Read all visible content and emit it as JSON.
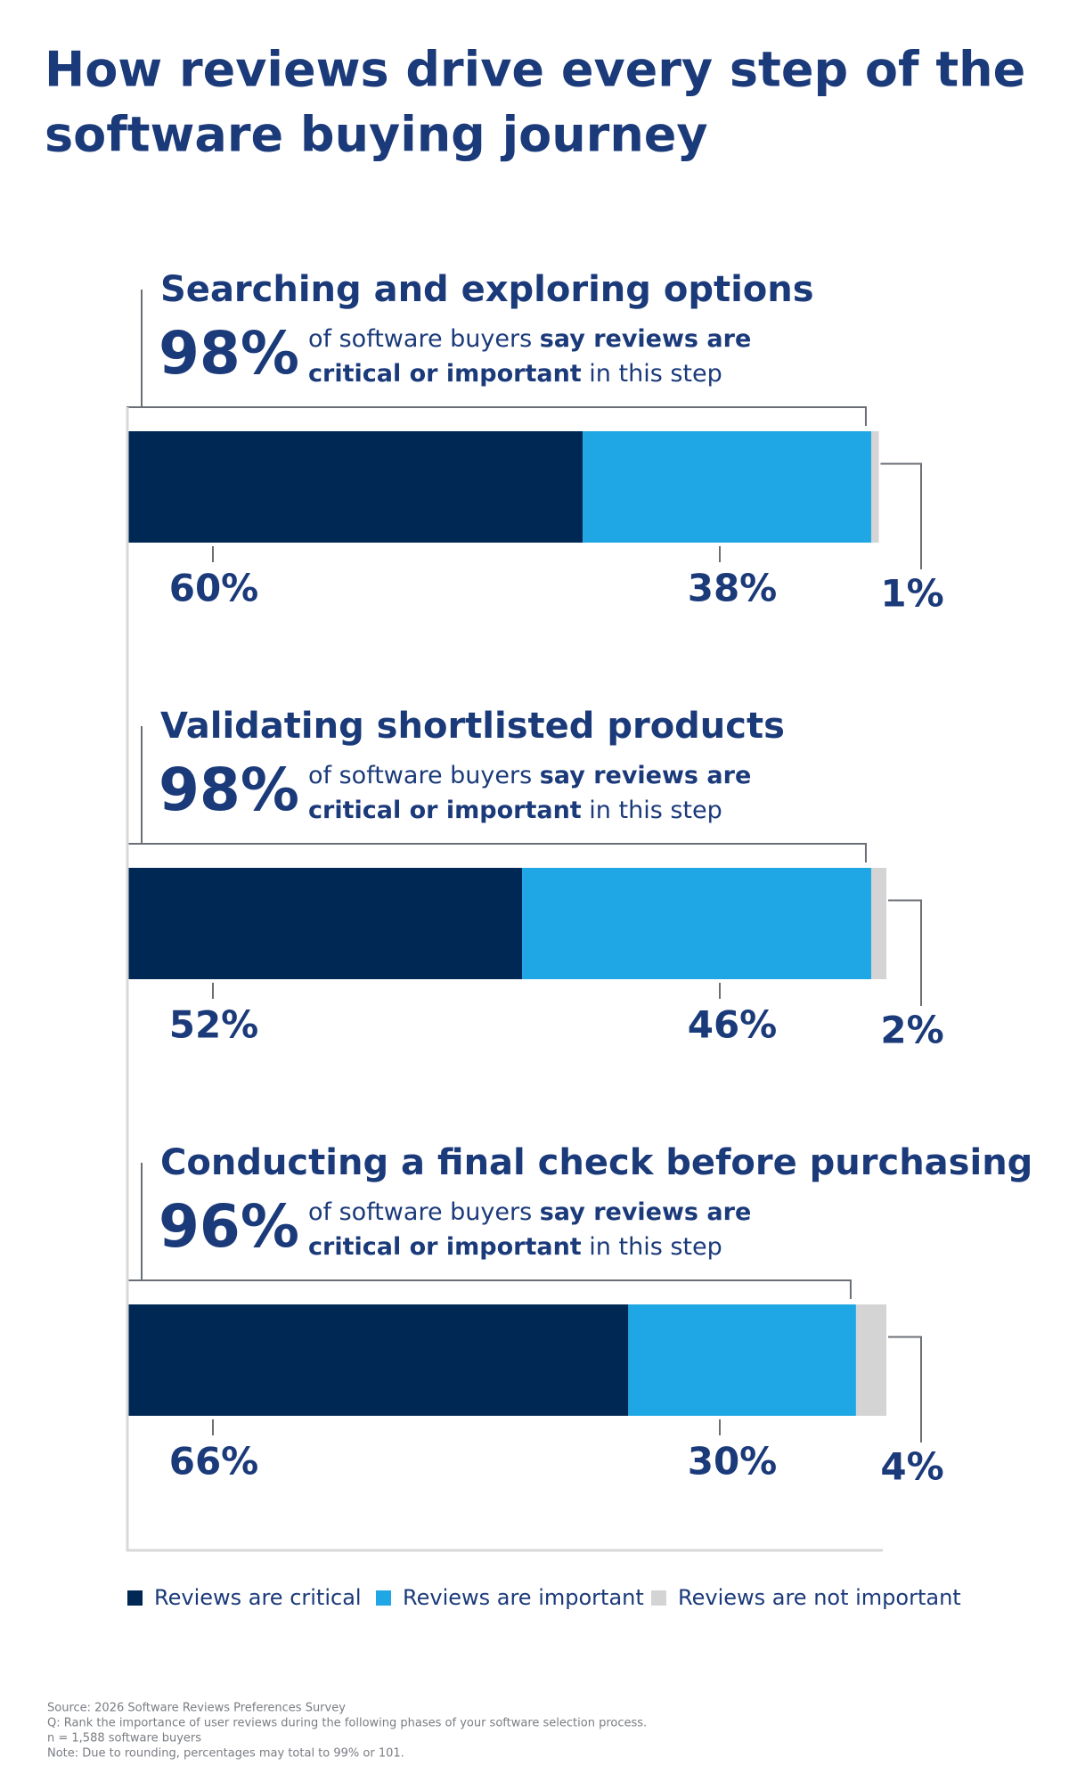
{
  "chart_data": {
    "type": "stacked-bar",
    "title": [
      "How reviews drive every step of the",
      "software buying journey"
    ],
    "categories": [
      "Searching and exploring options",
      "Validating shortlisted products",
      "Conducting a final check before purchasing"
    ],
    "highlight": {
      "values": [
        98,
        98,
        96
      ],
      "value_labels": [
        "98%",
        "98%",
        "96%"
      ]
    },
    "statement": [
      [
        "of software buyers ",
        "say reviews are"
      ],
      [
        "critical or important",
        " in this step"
      ]
    ],
    "xlim": [
      0,
      100
    ],
    "series": [
      {
        "name": "Reviews are critical",
        "color": "#002855",
        "values": [
          60,
          52,
          66
        ],
        "value_labels": [
          "60%",
          "52%",
          "66%"
        ]
      },
      {
        "name": "Reviews are important",
        "color": "#1ea7e4",
        "values": [
          38,
          46,
          30
        ],
        "value_labels": [
          "38%",
          "46%",
          "30%"
        ]
      },
      {
        "name": "Reviews are not important",
        "color": "#d4d4d4",
        "values": [
          1,
          2,
          4
        ],
        "value_labels": [
          "1%",
          "2%",
          "4%"
        ]
      }
    ]
  },
  "notes": [
    "Source: 2026 Software Reviews Preferences Survey",
    "Q: Rank the importance of user reviews during the following phases of your software selection process.",
    "n = 1,588 software buyers",
    "Note: Due to rounding, percentages may total to 99% or 101."
  ]
}
